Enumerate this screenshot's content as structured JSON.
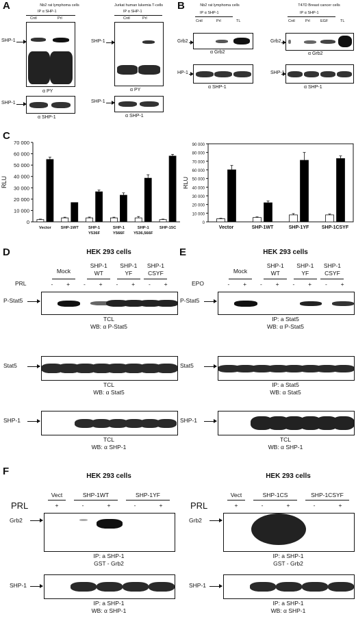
{
  "panels": {
    "A": "A",
    "B": "B",
    "C": "C",
    "D": "D",
    "E": "E",
    "F": "F"
  },
  "panelA": {
    "left": {
      "title": "Nb2 rat lymphoma cells",
      "ip": "IP α SHP-1",
      "lanes": [
        "Cntl",
        "Prl"
      ],
      "blot1_marker": "SHP-1",
      "blot1_wb": "α PY",
      "blot2_marker": "SHP-1",
      "blot2_wb": "α SHP-1"
    },
    "right": {
      "title": "Jurkat human lukemia T-cells",
      "ip": "IP α SHP-1",
      "lanes": [
        "Cntl",
        "Prl"
      ],
      "blot1_marker": "SHP-1",
      "blot1_wb": "α PY",
      "blot2_marker": "SHP-1",
      "blot2_wb": "α SHP-1"
    }
  },
  "panelB": {
    "left": {
      "title": "Nb2 rat lymphoma cells",
      "ip": "IP α SHP-1",
      "lanes": [
        "Cntl",
        "Prl",
        "TL"
      ],
      "blot1_marker": "Grb2",
      "blot1_wb": "α Grb2",
      "blot2_marker": "HP-1",
      "blot2_wb": "α SHP-1"
    },
    "right": {
      "title": "T47D Breast cancer cells",
      "ip": "IP α SHP-1",
      "lanes": [
        "Cntl",
        "Prl",
        "EGF",
        "TL"
      ],
      "blot1_marker": "Grb2",
      "blot1_wb": "α Grb2",
      "blot2_marker": "SHP-1",
      "blot2_wb": "α SHP-1"
    }
  },
  "chart_data": [
    {
      "type": "bar",
      "title": "",
      "ylabel": "RLU",
      "xlabel": "",
      "ylim": [
        0,
        70000
      ],
      "yticks": [
        "0",
        "10 000",
        "20 000",
        "30 000",
        "40 000",
        "50 000",
        "60 000",
        "70 000"
      ],
      "categories": [
        "Vector",
        "SHP-1WT",
        "SHP-1 Y536F",
        "SHP-1 Y566F",
        "SHP-1 Y536,566F",
        "SHP-1 5C"
      ],
      "category_lines": [
        [
          "Vector"
        ],
        [
          "SHP-1WT"
        ],
        [
          "SHP-1",
          "Y536F"
        ],
        [
          "SHP-1",
          "Y566F"
        ],
        [
          "SHP-1",
          "Y536,566F"
        ],
        [
          "SHP-15C"
        ]
      ],
      "series": [
        {
          "fill": "#ffffff",
          "values": [
            2000,
            3500,
            3500,
            3500,
            3500,
            2000
          ],
          "errors": [
            400,
            600,
            700,
            600,
            1200,
            400
          ]
        },
        {
          "fill": "#000000",
          "values": [
            55000,
            17000,
            26500,
            23500,
            38500,
            58000
          ],
          "errors": [
            2000,
            0,
            1500,
            2000,
            3000,
            1500
          ]
        }
      ]
    },
    {
      "type": "bar",
      "title": "",
      "ylabel": "RLU",
      "xlabel": "",
      "ylim": [
        0,
        90000
      ],
      "yticks": [
        "0",
        "10 000",
        "20 000",
        "30 000",
        "40 000",
        "50 000",
        "60 000",
        "70 000",
        "80 000",
        "90 000"
      ],
      "categories": [
        "Vector",
        "SHP-1WT",
        "SHP-1YF",
        "SHP-1CSYF"
      ],
      "category_lines": [
        [
          "Vector"
        ],
        [
          "SHP-1WT"
        ],
        [
          "SHP-1YF"
        ],
        [
          "SHP-1CSYF"
        ]
      ],
      "series": [
        {
          "fill": "#ffffff",
          "values": [
            3500,
            5000,
            8000,
            8000
          ],
          "errors": [
            600,
            700,
            1500,
            1000
          ]
        },
        {
          "fill": "#000000",
          "values": [
            60000,
            22000,
            71000,
            73000
          ],
          "errors": [
            5000,
            2000,
            9000,
            3000
          ]
        }
      ]
    }
  ],
  "panelD": {
    "title": "HEK 293 cells",
    "groups": [
      "Mock",
      "SHP-1\nWT",
      "SHP-1\nYF",
      "SHP-1\nCSYF"
    ],
    "treatment": "PRL",
    "signs": [
      "-",
      "+",
      "-",
      "+",
      "-",
      "+",
      "-",
      "+"
    ],
    "blots": [
      {
        "marker": "P-Stat5",
        "cap1": "TCL",
        "cap2": "WB:  α P-Stat5"
      },
      {
        "marker": "Stat5",
        "cap1": "TCL",
        "cap2": "WB:  α Stat5"
      },
      {
        "marker": "SHP-1",
        "cap1": "TCL",
        "cap2": "WB:  α SHP-1"
      }
    ]
  },
  "panelE": {
    "title": "HEK 293 cells",
    "groups": [
      "Mock",
      "SHP-1\nWT",
      "SHP-1\nYF",
      "SHP-1\nCSYF"
    ],
    "treatment": "EPO",
    "signs": [
      "-",
      "+",
      "-",
      "+",
      "-",
      "+",
      "-",
      "+"
    ],
    "blots": [
      {
        "marker": "P-Stat5",
        "cap1": "IP: a Stat5",
        "cap2": "WB:  α P-Stat5"
      },
      {
        "marker": "Stat5",
        "cap1": "IP: a Stat5",
        "cap2": "WB:  α Stat5"
      },
      {
        "marker": "SHP-1",
        "cap1": "TCL",
        "cap2": "WB:  α SHP-1"
      }
    ]
  },
  "panelF": {
    "left": {
      "title": "HEK 293 cells",
      "groups": [
        "Vect",
        "SHP-1WT",
        "SHP-1YF"
      ],
      "treatment": "PRL",
      "signs": [
        "+",
        "-",
        "+",
        "-",
        "+"
      ],
      "blots": [
        {
          "marker": "Grb2",
          "cap1": "IP: a SHP-1",
          "cap2": "GST - Grb2"
        },
        {
          "marker": "SHP-1",
          "cap1": "IP: a SHP-1",
          "cap2": "WB: α SHP-1"
        }
      ]
    },
    "right": {
      "title": "HEK 293 cells",
      "groups": [
        "Vect",
        "SHP-1CS",
        "SHP-1CSYF"
      ],
      "treatment": "PRL",
      "signs": [
        "+",
        "-",
        "+",
        "-",
        "+"
      ],
      "blots": [
        {
          "marker": "Grb2",
          "cap1": "IP: a SHP-1",
          "cap2": "GST - Grb2"
        },
        {
          "marker": "SHP-1",
          "cap1": "IP: a SHP-1",
          "cap2": "WB: α SHP-1"
        }
      ]
    }
  }
}
